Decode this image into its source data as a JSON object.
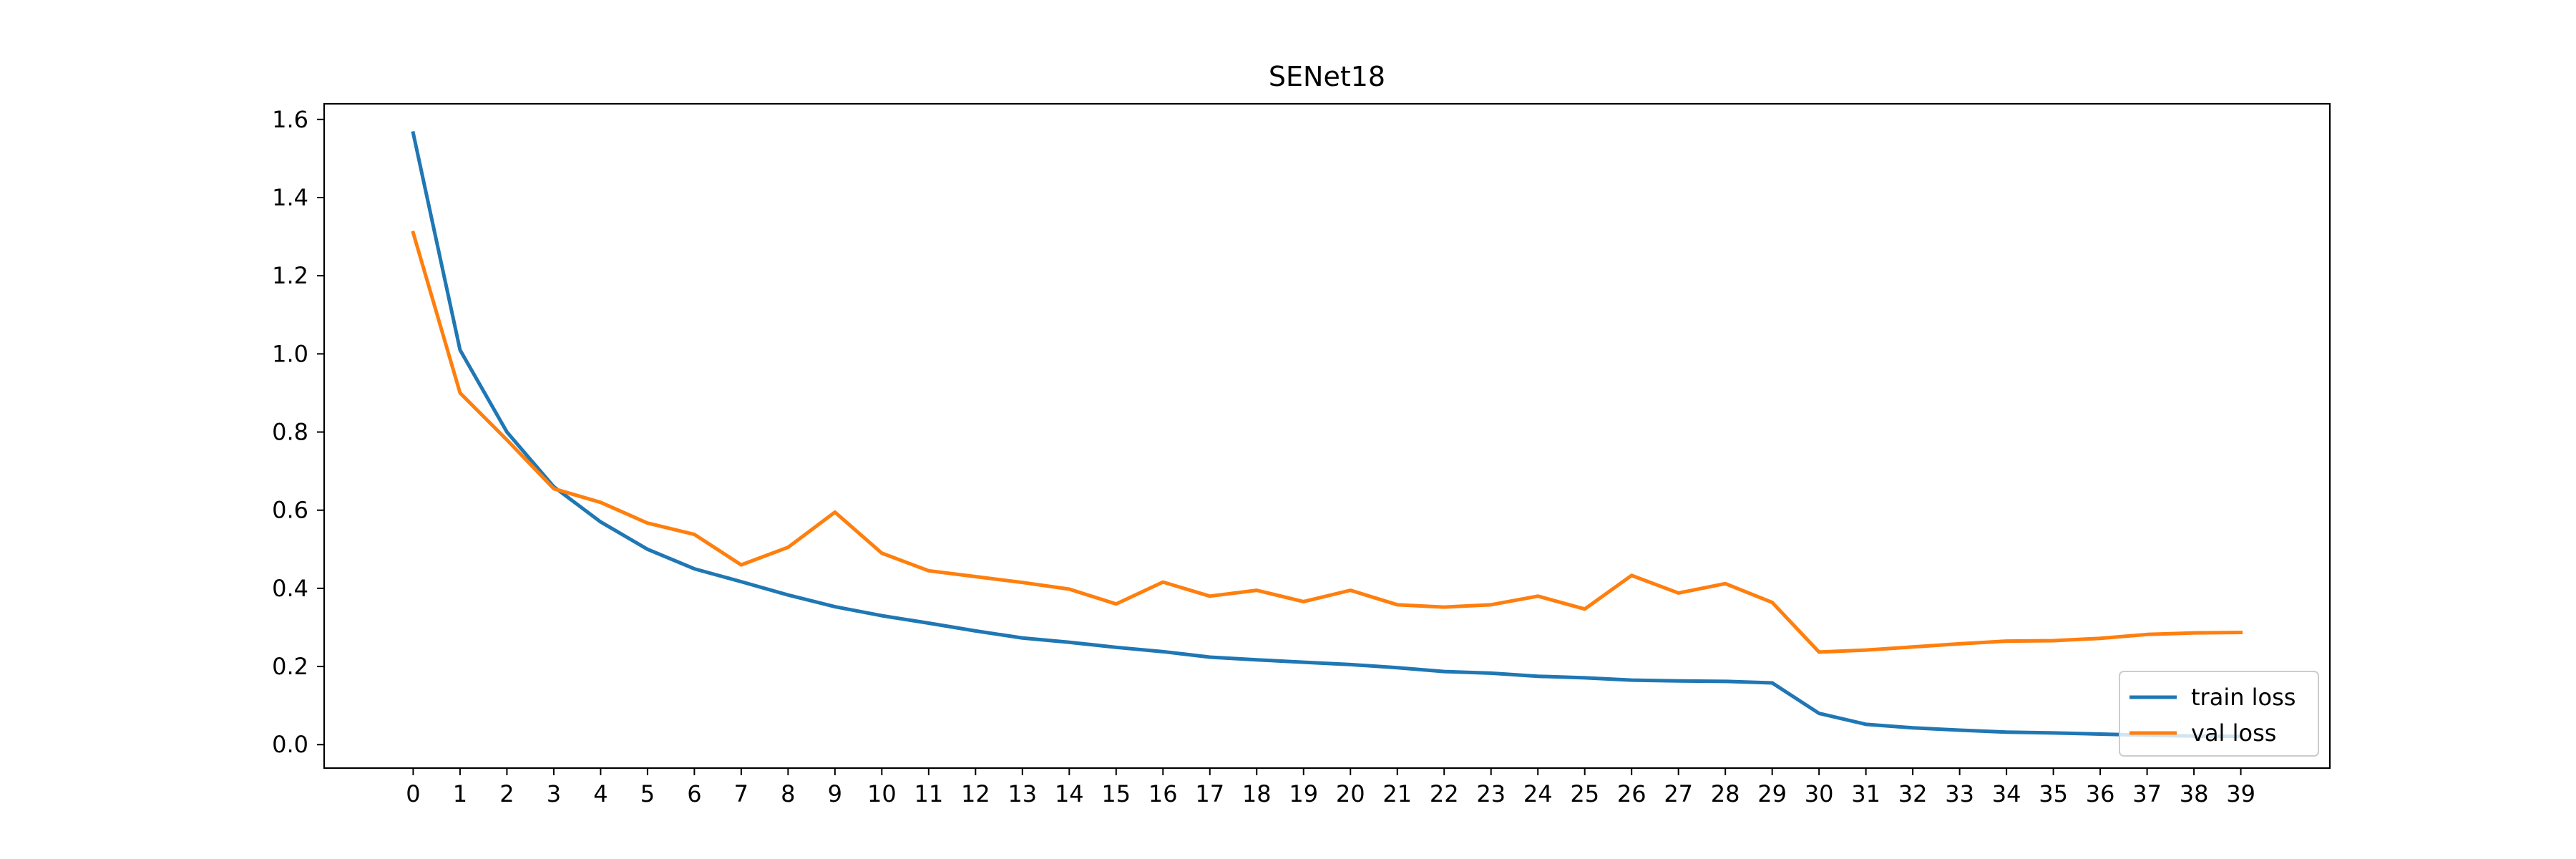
{
  "chart_data": {
    "type": "line",
    "title": "SENet18",
    "xlabel": "",
    "ylabel": "",
    "x": [
      0,
      1,
      2,
      3,
      4,
      5,
      6,
      7,
      8,
      9,
      10,
      11,
      12,
      13,
      14,
      15,
      16,
      17,
      18,
      19,
      20,
      21,
      22,
      23,
      24,
      25,
      26,
      27,
      28,
      29,
      30,
      31,
      32,
      33,
      34,
      35,
      36,
      37,
      38,
      39
    ],
    "xticks": [
      "0",
      "1",
      "2",
      "3",
      "4",
      "5",
      "6",
      "7",
      "8",
      "9",
      "10",
      "11",
      "12",
      "13",
      "14",
      "15",
      "16",
      "17",
      "18",
      "19",
      "20",
      "21",
      "22",
      "23",
      "24",
      "25",
      "26",
      "27",
      "28",
      "29",
      "30",
      "31",
      "32",
      "33",
      "34",
      "35",
      "36",
      "37",
      "38",
      "39"
    ],
    "ylim": [
      -0.06,
      1.64
    ],
    "yticks": [
      0.0,
      0.2,
      0.4,
      0.6,
      0.8,
      1.0,
      1.2,
      1.4,
      1.6
    ],
    "ytick_labels": [
      "0.0",
      "0.2",
      "0.4",
      "0.6",
      "0.8",
      "1.0",
      "1.2",
      "1.4",
      "1.6"
    ],
    "grid": false,
    "legend_position": "bottom-right",
    "series": [
      {
        "name": "train loss",
        "color": "#1f77b4",
        "values": [
          1.565,
          1.01,
          0.8,
          0.66,
          0.57,
          0.5,
          0.45,
          0.417,
          0.383,
          0.353,
          0.33,
          0.311,
          0.291,
          0.273,
          0.262,
          0.249,
          0.238,
          0.224,
          0.217,
          0.211,
          0.205,
          0.197,
          0.187,
          0.183,
          0.175,
          0.171,
          0.165,
          0.163,
          0.162,
          0.158,
          0.08,
          0.052,
          0.043,
          0.037,
          0.032,
          0.03,
          0.027,
          0.024,
          0.022,
          0.021
        ]
      },
      {
        "name": "val loss",
        "color": "#ff7f0e",
        "values": [
          1.31,
          0.9,
          0.78,
          0.655,
          0.62,
          0.567,
          0.538,
          0.46,
          0.505,
          0.595,
          0.49,
          0.445,
          0.43,
          0.415,
          0.398,
          0.36,
          0.416,
          0.38,
          0.395,
          0.366,
          0.395,
          0.358,
          0.352,
          0.358,
          0.38,
          0.347,
          0.433,
          0.388,
          0.412,
          0.364,
          0.237,
          0.242,
          0.25,
          0.258,
          0.265,
          0.266,
          0.272,
          0.282,
          0.286,
          0.287
        ]
      }
    ]
  }
}
